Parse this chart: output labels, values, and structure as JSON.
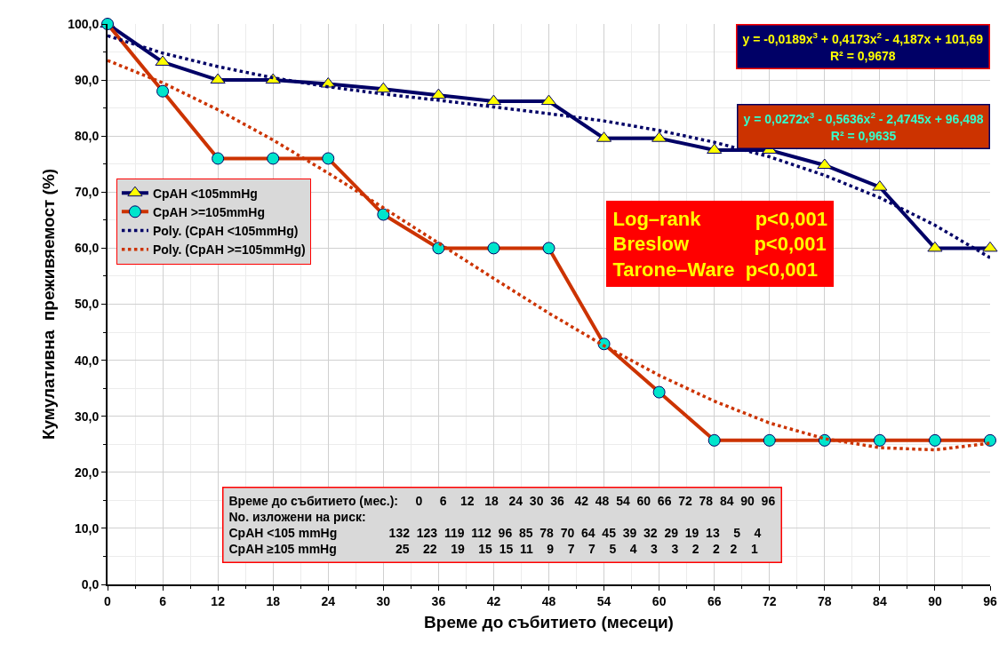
{
  "chart_data": {
    "type": "line",
    "xlabel": "Време до събитието (месеци)",
    "ylabel": "Кумулативна  преживяемост (%)",
    "x": [
      0,
      6,
      12,
      18,
      24,
      30,
      36,
      42,
      48,
      54,
      60,
      66,
      72,
      78,
      84,
      90,
      96
    ],
    "series": [
      {
        "name": "СрАН <105mmHg",
        "color": "#000066",
        "marker": "triangle",
        "line_style": "solid",
        "values": [
          100,
          93.2,
          90.0,
          90.0,
          89.3,
          88.4,
          87.3,
          86.2,
          86.2,
          79.6,
          79.6,
          77.5,
          77.5,
          74.8,
          70.9,
          60.0,
          60.0
        ]
      },
      {
        "name": "СрАН >=105mmHg",
        "color": "#cc3300",
        "marker": "circle",
        "line_style": "solid",
        "values": [
          100,
          88.0,
          76.0,
          76.0,
          76.0,
          66.0,
          60.0,
          60.0,
          60.0,
          42.9,
          34.3,
          25.7,
          25.7,
          25.7,
          25.7,
          25.7,
          25.7
        ]
      },
      {
        "name": "Poly. (СрАН <105mmHg)",
        "color": "#000066",
        "marker": "none",
        "line_style": "dotted",
        "values": [
          97.9,
          94.8,
          92.4,
          90.4,
          88.8,
          87.5,
          86.4,
          85.2,
          84.0,
          82.7,
          81.0,
          78.9,
          76.3,
          73.0,
          69.0,
          64.1,
          58.3
        ]
      },
      {
        "name": "Poly. (СрАН >=105mmHg)",
        "color": "#cc3300",
        "marker": "none",
        "line_style": "dotted",
        "values": [
          93.5,
          89.5,
          84.7,
          79.3,
          73.4,
          67.2,
          60.9,
          54.6,
          48.4,
          42.6,
          37.3,
          32.7,
          28.8,
          26.0,
          24.4,
          24.0,
          25.2
        ]
      }
    ],
    "xlim": [
      0,
      96
    ],
    "xticks": [
      0,
      6,
      12,
      18,
      24,
      30,
      36,
      42,
      48,
      54,
      60,
      66,
      72,
      78,
      84,
      90,
      96
    ],
    "ylim": [
      0,
      100
    ],
    "yticks": [
      {
        "value": 0,
        "label": "0,0"
      },
      {
        "value": 10,
        "label": "10,0"
      },
      {
        "value": 20,
        "label": "20,0"
      },
      {
        "value": 30,
        "label": "30,0"
      },
      {
        "value": 40,
        "label": "40,0"
      },
      {
        "value": 50,
        "label": "50,0"
      },
      {
        "value": 60,
        "label": "60,0"
      },
      {
        "value": 70,
        "label": "70,0"
      },
      {
        "value": 80,
        "label": "80,0"
      },
      {
        "value": 90,
        "label": "90,0"
      },
      {
        "value": 100,
        "label": "100,0"
      }
    ],
    "grid": true,
    "legend": "top left",
    "annotations": [
      "y = -0,0189x$^{3}$ + 0,4173x$^{2}$ - 4,187x + 101,69\nR² = 0,9678",
      "y = 0,0272x$^{3}$ - 0,5636x$^{2}$ - 2,4745x + 96,498\nR² = 0,9635",
      "Log–rank          p<0,001\nBreslow            p<0,001\nTarone–Ware  p<0,001",
      "Време до събитието (мес.):     0     6    12   18   24  30  36   42  48  54  60  66  72  78  84  90  96\nNo. изложени на риск:\nСрАН <105 mmHg               132  123  119  112  96  85  78  70  64  45  39  32  29  19  13    5    4\nСрАН ≥105 mmHg                 25    22    19    15  15  11    9    7    7    5    4    3    3    2    2   2    1"
    ]
  }
}
